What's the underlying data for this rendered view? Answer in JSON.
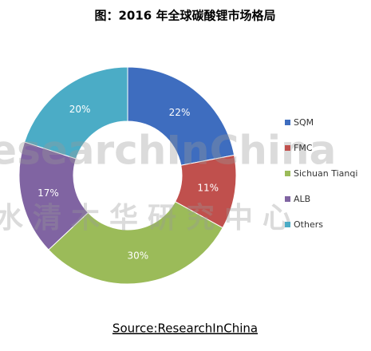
{
  "chart_data": {
    "type": "donut",
    "title": "图：2016 年全球碳酸锂市场格局",
    "categories": [
      "SQM",
      "FMC",
      "Sichuan Tianqi",
      "ALB",
      "Others"
    ],
    "values": [
      22,
      11,
      30,
      17,
      20
    ],
    "value_labels": [
      "22%",
      "11%",
      "30%",
      "17%",
      "20%"
    ],
    "colors": [
      "#3e6dbf",
      "#c0504d",
      "#9bbb59",
      "#8064a2",
      "#4bacc6"
    ],
    "legend": "right",
    "watermark": [
      "ResearchInChina",
      "水清木华研究中心"
    ],
    "source": "Source:ResearchInChina"
  }
}
